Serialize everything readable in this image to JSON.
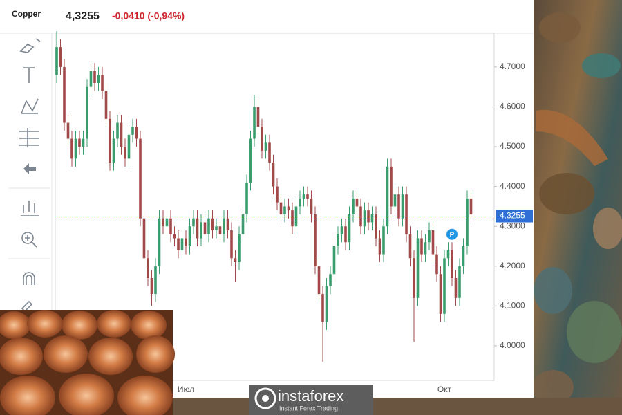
{
  "header": {
    "symbol": "Copper",
    "price": "4,3255",
    "change": "-0,0410 (-0,94%)"
  },
  "watermark": {
    "brand": "instaforex",
    "tagline": "Instant Forex Trading"
  },
  "chart_data": {
    "type": "candlestick",
    "up_color": "#3a9d6e",
    "down_color": "#a24a4a",
    "grid": false,
    "ylim": [
      3.913,
      4.785
    ],
    "yticks": [
      {
        "value": 4.0,
        "label": "4.0000"
      },
      {
        "value": 4.1,
        "label": "4.1000"
      },
      {
        "value": 4.2,
        "label": "4.2000"
      },
      {
        "value": 4.3,
        "label": "4.3000"
      },
      {
        "value": 4.4,
        "label": "4.4000"
      },
      {
        "value": 4.5,
        "label": "4.5000"
      },
      {
        "value": 4.6,
        "label": "4.6000"
      },
      {
        "value": 4.7,
        "label": "4.7000"
      }
    ],
    "last_price": {
      "value": 4.3255,
      "label": "4.3255",
      "color": "#2f6fd6"
    },
    "marker": {
      "index": 104,
      "value": 4.28,
      "label": "P",
      "color": "#2196e3"
    },
    "categories": [
      null,
      null,
      null,
      null,
      null,
      null,
      null,
      null,
      null,
      null,
      null,
      null,
      null,
      null,
      null,
      null,
      null,
      null,
      null,
      null,
      null,
      null,
      null,
      null,
      null,
      null,
      null,
      null,
      null,
      null,
      null,
      null,
      null,
      null,
      "Июл",
      null,
      null,
      null,
      null,
      null,
      null,
      null,
      null,
      null,
      null,
      null,
      null,
      null,
      null,
      null,
      null,
      null,
      null,
      null,
      null,
      null,
      null,
      null,
      null,
      null,
      null,
      null,
      null,
      null,
      null,
      null,
      null,
      null,
      null,
      null,
      null,
      null,
      null,
      null,
      null,
      null,
      null,
      null,
      null,
      null,
      null,
      null,
      null,
      null,
      null,
      null,
      null,
      null,
      null,
      null,
      null,
      null,
      null,
      null,
      null,
      null,
      null,
      null,
      null,
      null,
      null,
      null,
      "Окт",
      null,
      null,
      null,
      null,
      null,
      null,
      null
    ],
    "open": [
      4.68,
      4.75,
      4.7,
      4.56,
      4.52,
      4.47,
      4.52,
      4.5,
      4.52,
      4.65,
      4.69,
      4.66,
      4.68,
      4.64,
      4.57,
      4.46,
      4.52,
      4.56,
      4.5,
      4.47,
      4.53,
      4.55,
      4.52,
      4.32,
      4.22,
      4.17,
      4.13,
      4.2,
      4.32,
      4.3,
      4.32,
      4.28,
      4.27,
      4.24,
      4.27,
      4.25,
      4.3,
      4.32,
      4.27,
      4.31,
      4.28,
      4.32,
      4.29,
      4.3,
      4.28,
      4.32,
      4.29,
      4.22,
      4.21,
      4.28,
      4.33,
      4.41,
      4.52,
      4.6,
      4.55,
      4.49,
      4.51,
      4.46,
      4.4,
      4.36,
      4.33,
      4.35,
      4.34,
      4.3,
      4.35,
      4.37,
      4.38,
      4.37,
      4.33,
      4.2,
      4.13,
      4.06,
      4.15,
      4.18,
      4.25,
      4.28,
      4.3,
      4.26,
      4.33,
      4.37,
      4.35,
      4.3,
      4.34,
      4.31,
      4.33,
      4.27,
      4.23,
      4.3,
      4.45,
      4.35,
      4.38,
      4.32,
      4.38,
      4.28,
      4.22,
      4.12,
      4.27,
      4.23,
      4.26,
      4.29,
      4.23,
      4.18,
      4.08,
      4.22,
      4.24,
      4.17,
      4.12,
      4.2,
      4.25,
      4.37
    ],
    "high": [
      4.79,
      4.77,
      4.72,
      4.58,
      4.54,
      4.54,
      4.54,
      4.54,
      4.67,
      4.71,
      4.71,
      4.7,
      4.7,
      4.66,
      4.59,
      4.54,
      4.58,
      4.58,
      4.52,
      4.55,
      4.57,
      4.57,
      4.54,
      4.34,
      4.24,
      4.19,
      4.22,
      4.34,
      4.34,
      4.34,
      4.34,
      4.3,
      4.29,
      4.29,
      4.29,
      4.32,
      4.34,
      4.34,
      4.33,
      4.33,
      4.34,
      4.34,
      4.32,
      4.32,
      4.34,
      4.34,
      4.31,
      4.24,
      4.3,
      4.35,
      4.43,
      4.54,
      4.63,
      4.62,
      4.57,
      4.53,
      4.53,
      4.48,
      4.42,
      4.38,
      4.37,
      4.37,
      4.36,
      4.37,
      4.39,
      4.4,
      4.4,
      4.39,
      4.35,
      4.22,
      4.15,
      4.17,
      4.2,
      4.27,
      4.3,
      4.32,
      4.32,
      4.35,
      4.39,
      4.39,
      4.37,
      4.36,
      4.36,
      4.35,
      4.35,
      4.29,
      4.32,
      4.47,
      4.47,
      4.4,
      4.4,
      4.4,
      4.4,
      4.3,
      4.24,
      4.29,
      4.29,
      4.28,
      4.31,
      4.31,
      4.25,
      4.2,
      4.24,
      4.26,
      4.26,
      4.19,
      4.22,
      4.27,
      4.39,
      4.39
    ],
    "low": [
      4.66,
      4.68,
      4.54,
      4.5,
      4.45,
      4.45,
      4.48,
      4.48,
      4.5,
      4.63,
      4.64,
      4.64,
      4.62,
      4.55,
      4.44,
      4.44,
      4.5,
      4.48,
      4.45,
      4.45,
      4.51,
      4.5,
      4.3,
      4.2,
      4.15,
      4.1,
      4.11,
      4.18,
      4.28,
      4.28,
      4.26,
      4.25,
      4.22,
      4.22,
      4.23,
      4.23,
      4.28,
      4.25,
      4.25,
      4.26,
      4.26,
      4.27,
      4.27,
      4.26,
      4.26,
      4.27,
      4.2,
      4.16,
      4.19,
      4.26,
      4.31,
      4.39,
      4.5,
      4.53,
      4.47,
      4.47,
      4.44,
      4.38,
      4.34,
      4.31,
      4.31,
      4.32,
      4.28,
      4.28,
      4.33,
      4.35,
      4.35,
      4.31,
      4.18,
      4.11,
      3.96,
      4.04,
      4.13,
      4.16,
      4.23,
      4.26,
      4.24,
      4.24,
      4.31,
      4.33,
      4.28,
      4.28,
      4.29,
      4.29,
      4.25,
      4.21,
      4.21,
      4.28,
      4.33,
      4.33,
      4.3,
      4.3,
      4.26,
      4.2,
      4.01,
      4.1,
      4.21,
      4.21,
      4.24,
      4.21,
      4.16,
      4.06,
      4.06,
      4.2,
      4.15,
      4.1,
      4.1,
      4.18,
      4.23,
      4.31
    ],
    "close": [
      4.75,
      4.7,
      4.56,
      4.52,
      4.47,
      4.52,
      4.5,
      4.52,
      4.65,
      4.69,
      4.66,
      4.68,
      4.64,
      4.57,
      4.46,
      4.52,
      4.56,
      4.5,
      4.47,
      4.53,
      4.55,
      4.52,
      4.32,
      4.22,
      4.17,
      4.13,
      4.2,
      4.32,
      4.3,
      4.32,
      4.28,
      4.27,
      4.24,
      4.27,
      4.25,
      4.3,
      4.32,
      4.27,
      4.31,
      4.28,
      4.32,
      4.29,
      4.3,
      4.28,
      4.32,
      4.29,
      4.22,
      4.21,
      4.28,
      4.33,
      4.41,
      4.52,
      4.6,
      4.55,
      4.49,
      4.51,
      4.46,
      4.4,
      4.36,
      4.33,
      4.35,
      4.34,
      4.3,
      4.35,
      4.37,
      4.38,
      4.37,
      4.33,
      4.2,
      4.13,
      4.06,
      4.15,
      4.18,
      4.25,
      4.28,
      4.3,
      4.26,
      4.33,
      4.37,
      4.35,
      4.3,
      4.34,
      4.31,
      4.33,
      4.27,
      4.23,
      4.3,
      4.45,
      4.35,
      4.38,
      4.32,
      4.38,
      4.28,
      4.22,
      4.12,
      4.27,
      4.23,
      4.26,
      4.29,
      4.23,
      4.18,
      4.08,
      4.22,
      4.24,
      4.17,
      4.12,
      4.2,
      4.25,
      4.37,
      4.33
    ]
  }
}
